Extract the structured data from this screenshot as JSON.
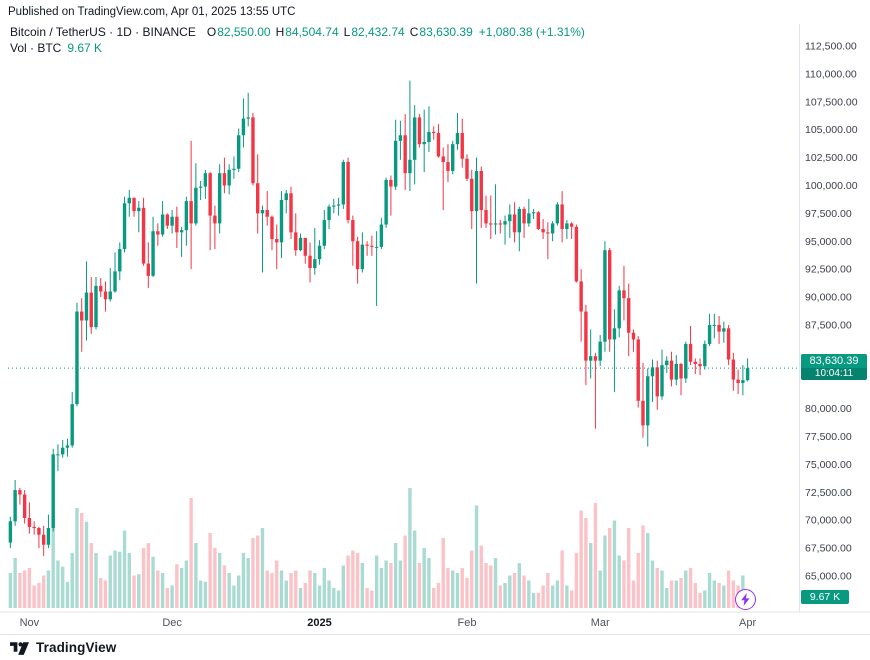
{
  "header": {
    "published": "Published on TradingView.com, Apr 01, 2025 13:55 UTC"
  },
  "legend": {
    "title": "Bitcoin / TetherUS · 1D · BINANCE",
    "o_label": "O",
    "o": "82,550.00",
    "h_label": "H",
    "h": "84,504.74",
    "l_label": "L",
    "l": "82,432.74",
    "c_label": "C",
    "c": "83,630.39",
    "change": "+1,080.38 (+1.31%)",
    "vol_label": "Vol · BTC",
    "vol_value": "9.67 K"
  },
  "price_badge": {
    "price": "83,630.39",
    "countdown": "10:04:11"
  },
  "volume_badge": {
    "value": "9.67 K"
  },
  "footer": {
    "brand": "TradingView"
  },
  "colors": {
    "up": "#089981",
    "down": "#F23645",
    "vol_up": "rgba(8,153,129,0.35)",
    "vol_down": "rgba(242,54,69,0.30)",
    "axis_line": "#e0e3eb",
    "text": "#131722",
    "muted": "#50535e",
    "badge": "#089981",
    "purple": "#9334ea"
  },
  "chart_data": {
    "type": "candlestick+volume",
    "pair": "Bitcoin / TetherUS",
    "exchange": "BINANCE",
    "interval": "1D",
    "start_date": "2024-10-28",
    "last_close": 83630.39,
    "volume_unit": "K BTC",
    "price_axis": {
      "min": 65000,
      "max": 112500,
      "tick_step": 2500,
      "format": "#,##0.00"
    },
    "x_ticks": [
      {
        "label": "Nov",
        "index": 4
      },
      {
        "label": "Dec",
        "index": 34
      },
      {
        "label": "2025",
        "index": 65,
        "bold": true
      },
      {
        "label": "Feb",
        "index": 96
      },
      {
        "label": "Mar",
        "index": 124
      },
      {
        "label": "Apr",
        "index": 155
      }
    ],
    "ohlcv": [
      [
        68000,
        70300,
        67500,
        69900,
        28
      ],
      [
        69900,
        73600,
        69500,
        72700,
        40
      ],
      [
        72700,
        72900,
        71400,
        72300,
        28
      ],
      [
        72300,
        72700,
        69700,
        70200,
        30
      ],
      [
        70200,
        71600,
        68800,
        69400,
        32
      ],
      [
        69400,
        69900,
        68700,
        69300,
        18
      ],
      [
        69300,
        69400,
        67500,
        68700,
        20
      ],
      [
        68700,
        69500,
        66800,
        67800,
        26
      ],
      [
        67800,
        70500,
        67500,
        69300,
        30
      ],
      [
        69300,
        76400,
        69000,
        75900,
        74
      ],
      [
        75900,
        76800,
        74400,
        75900,
        38
      ],
      [
        75900,
        77200,
        75600,
        76500,
        33
      ],
      [
        76500,
        77300,
        75700,
        76700,
        21
      ],
      [
        76700,
        81500,
        76500,
        80400,
        44
      ],
      [
        80400,
        89500,
        80200,
        88700,
        80
      ],
      [
        88700,
        89900,
        85100,
        87900,
        76
      ],
      [
        87900,
        93200,
        86100,
        90400,
        69
      ],
      [
        90400,
        91800,
        86700,
        87300,
        52
      ],
      [
        87300,
        91800,
        87100,
        91000,
        44
      ],
      [
        91000,
        91700,
        90000,
        90500,
        24
      ],
      [
        90500,
        91400,
        88700,
        89800,
        22
      ],
      [
        89800,
        92600,
        89600,
        90500,
        42
      ],
      [
        90500,
        94000,
        90400,
        92300,
        46
      ],
      [
        92300,
        94900,
        91500,
        94300,
        45
      ],
      [
        94300,
        99000,
        94000,
        98400,
        62
      ],
      [
        98400,
        99600,
        97200,
        98900,
        44
      ],
      [
        98900,
        98900,
        97200,
        97700,
        26
      ],
      [
        97700,
        98600,
        95800,
        98000,
        27
      ],
      [
        98000,
        98900,
        92800,
        93000,
        48
      ],
      [
        93000,
        94900,
        90800,
        91900,
        52
      ],
      [
        91900,
        97200,
        91800,
        95900,
        41
      ],
      [
        95900,
        96600,
        94600,
        95600,
        30
      ],
      [
        95600,
        98600,
        95400,
        97400,
        28
      ],
      [
        97400,
        97500,
        96100,
        96400,
        16
      ],
      [
        96400,
        97800,
        95700,
        97200,
        18
      ],
      [
        97200,
        98100,
        94400,
        95800,
        35
      ],
      [
        95800,
        96300,
        93600,
        96000,
        32
      ],
      [
        96000,
        99000,
        94600,
        98600,
        38
      ],
      [
        98600,
        104000,
        92500,
        96600,
        88
      ],
      [
        96600,
        102000,
        96400,
        99800,
        52
      ],
      [
        99800,
        100400,
        98700,
        99900,
        22
      ],
      [
        99900,
        101400,
        98800,
        101100,
        21
      ],
      [
        101100,
        101200,
        94200,
        97300,
        60
      ],
      [
        97300,
        98200,
        94300,
        96600,
        48
      ],
      [
        96600,
        101900,
        95700,
        101100,
        44
      ],
      [
        101100,
        102500,
        99300,
        100000,
        34
      ],
      [
        100000,
        101900,
        99200,
        101400,
        28
      ],
      [
        101400,
        102600,
        100600,
        101500,
        18
      ],
      [
        101500,
        105100,
        101200,
        104500,
        26
      ],
      [
        104500,
        107800,
        103400,
        106000,
        44
      ],
      [
        106000,
        108300,
        105300,
        106100,
        40
      ],
      [
        106100,
        106500,
        100000,
        100200,
        56
      ],
      [
        100200,
        102800,
        95700,
        97500,
        58
      ],
      [
        97500,
        98200,
        92200,
        97800,
        64
      ],
      [
        97800,
        99500,
        96400,
        97200,
        30
      ],
      [
        97200,
        97300,
        94200,
        95200,
        28
      ],
      [
        95200,
        96500,
        92500,
        94900,
        38
      ],
      [
        94900,
        99500,
        93500,
        98700,
        30
      ],
      [
        98700,
        99600,
        97500,
        99300,
        22
      ],
      [
        99300,
        99900,
        95200,
        95800,
        28
      ],
      [
        95800,
        97500,
        93700,
        94200,
        30
      ],
      [
        94200,
        95700,
        94100,
        95300,
        16
      ],
      [
        95300,
        95300,
        93000,
        93700,
        20
      ],
      [
        93700,
        94900,
        91300,
        92600,
        30
      ],
      [
        92600,
        96200,
        92000,
        93400,
        28
      ],
      [
        93400,
        95100,
        92900,
        94600,
        18
      ],
      [
        94600,
        97800,
        94300,
        96900,
        32
      ],
      [
        96900,
        98300,
        96100,
        98100,
        22
      ],
      [
        98100,
        98800,
        97500,
        98200,
        16
      ],
      [
        98200,
        98900,
        97300,
        98300,
        14
      ],
      [
        98300,
        102300,
        97900,
        102100,
        34
      ],
      [
        102100,
        102500,
        96600,
        96900,
        42
      ],
      [
        96900,
        97300,
        92800,
        95000,
        46
      ],
      [
        95000,
        95400,
        91200,
        92500,
        44
      ],
      [
        92500,
        95800,
        92200,
        94700,
        36
      ],
      [
        94700,
        95000,
        93700,
        94600,
        16
      ],
      [
        94600,
        95500,
        93700,
        94500,
        14
      ],
      [
        94500,
        95900,
        89200,
        94500,
        42
      ],
      [
        94500,
        97100,
        94300,
        96500,
        32
      ],
      [
        96500,
        100700,
        96200,
        100500,
        38
      ],
      [
        100500,
        100900,
        97300,
        99900,
        36
      ],
      [
        99900,
        105900,
        99600,
        104000,
        52
      ],
      [
        104000,
        105800,
        102300,
        104500,
        38
      ],
      [
        104500,
        106400,
        99600,
        101100,
        58
      ],
      [
        101100,
        109400,
        99500,
        102300,
        96
      ],
      [
        102300,
        107200,
        100100,
        106100,
        62
      ],
      [
        106100,
        106400,
        103400,
        103700,
        36
      ],
      [
        103700,
        106800,
        101200,
        103900,
        48
      ],
      [
        103900,
        107100,
        103000,
        104800,
        40
      ],
      [
        104800,
        105300,
        104100,
        104700,
        16
      ],
      [
        104700,
        105500,
        102500,
        102600,
        20
      ],
      [
        102600,
        103400,
        97800,
        102100,
        56
      ],
      [
        102100,
        103700,
        100300,
        101300,
        32
      ],
      [
        101300,
        104000,
        101000,
        103700,
        30
      ],
      [
        103700,
        106500,
        103200,
        104700,
        28
      ],
      [
        104700,
        106000,
        101600,
        102400,
        32
      ],
      [
        102400,
        102800,
        100400,
        100600,
        24
      ],
      [
        100600,
        101400,
        96100,
        97700,
        46
      ],
      [
        97700,
        102500,
        91200,
        101300,
        82
      ],
      [
        101300,
        101700,
        96200,
        97800,
        50
      ],
      [
        97800,
        99100,
        96200,
        96600,
        36
      ],
      [
        96600,
        99100,
        95200,
        96500,
        34
      ],
      [
        96500,
        100100,
        95600,
        96600,
        40
      ],
      [
        96600,
        96900,
        95700,
        96500,
        18
      ],
      [
        96500,
        97300,
        94700,
        96800,
        20
      ],
      [
        96800,
        98300,
        95300,
        97400,
        26
      ],
      [
        97400,
        98500,
        94900,
        95800,
        28
      ],
      [
        95800,
        98100,
        94100,
        97900,
        36
      ],
      [
        97900,
        98100,
        95300,
        96600,
        26
      ],
      [
        96600,
        98800,
        96300,
        97500,
        22
      ],
      [
        97500,
        97900,
        97000,
        97600,
        12
      ],
      [
        97600,
        97700,
        96000,
        96100,
        12
      ],
      [
        96100,
        97000,
        95200,
        95800,
        18
      ],
      [
        95800,
        96700,
        93400,
        95700,
        28
      ],
      [
        95700,
        96800,
        95000,
        96600,
        18
      ],
      [
        96600,
        98500,
        96400,
        98300,
        22
      ],
      [
        98300,
        99500,
        94900,
        96100,
        46
      ],
      [
        96100,
        96900,
        95200,
        96600,
        18
      ],
      [
        96600,
        96700,
        95200,
        96300,
        14
      ],
      [
        96300,
        96500,
        91300,
        91400,
        44
      ],
      [
        91400,
        92500,
        86000,
        88700,
        78
      ],
      [
        88700,
        89300,
        82100,
        84300,
        72
      ],
      [
        84300,
        87100,
        82700,
        84700,
        52
      ],
      [
        84700,
        85000,
        78200,
        84300,
        84
      ],
      [
        84300,
        86600,
        83800,
        86000,
        30
      ],
      [
        86000,
        95000,
        85100,
        94200,
        58
      ],
      [
        94200,
        94400,
        85100,
        86200,
        64
      ],
      [
        86200,
        88900,
        81500,
        87200,
        70
      ],
      [
        87200,
        91000,
        86400,
        90600,
        42
      ],
      [
        90600,
        92800,
        87900,
        89900,
        38
      ],
      [
        89900,
        91200,
        84700,
        86800,
        64
      ],
      [
        86800,
        87100,
        85100,
        86200,
        22
      ],
      [
        86200,
        86500,
        80100,
        80700,
        44
      ],
      [
        80700,
        84100,
        77400,
        78500,
        66
      ],
      [
        78500,
        83600,
        76600,
        82900,
        60
      ],
      [
        82900,
        84400,
        80600,
        83700,
        38
      ],
      [
        83700,
        84300,
        79900,
        81100,
        32
      ],
      [
        81100,
        85300,
        80800,
        83900,
        30
      ],
      [
        83900,
        84700,
        83200,
        84300,
        16
      ],
      [
        84300,
        85100,
        82000,
        82600,
        22
      ],
      [
        82600,
        84800,
        82100,
        84000,
        22
      ],
      [
        84000,
        84100,
        81200,
        82700,
        24
      ],
      [
        82700,
        86000,
        82300,
        85800,
        30
      ],
      [
        85800,
        87400,
        83900,
        84200,
        32
      ],
      [
        84200,
        84500,
        83100,
        84000,
        20
      ],
      [
        84000,
        84500,
        83000,
        83800,
        12
      ],
      [
        83800,
        86100,
        83500,
        85800,
        14
      ],
      [
        85800,
        88500,
        85600,
        87500,
        28
      ],
      [
        87500,
        88500,
        86300,
        87500,
        22
      ],
      [
        87500,
        88300,
        85800,
        86900,
        20
      ],
      [
        86900,
        87800,
        85900,
        87200,
        18
      ],
      [
        87200,
        87500,
        83900,
        84400,
        30
      ],
      [
        84400,
        85000,
        81600,
        82600,
        22
      ],
      [
        82600,
        83500,
        81300,
        82300,
        18
      ],
      [
        82300,
        83900,
        81200,
        82550,
        26
      ],
      [
        82550,
        84504.74,
        82432.74,
        83630.39,
        9.67
      ]
    ]
  }
}
